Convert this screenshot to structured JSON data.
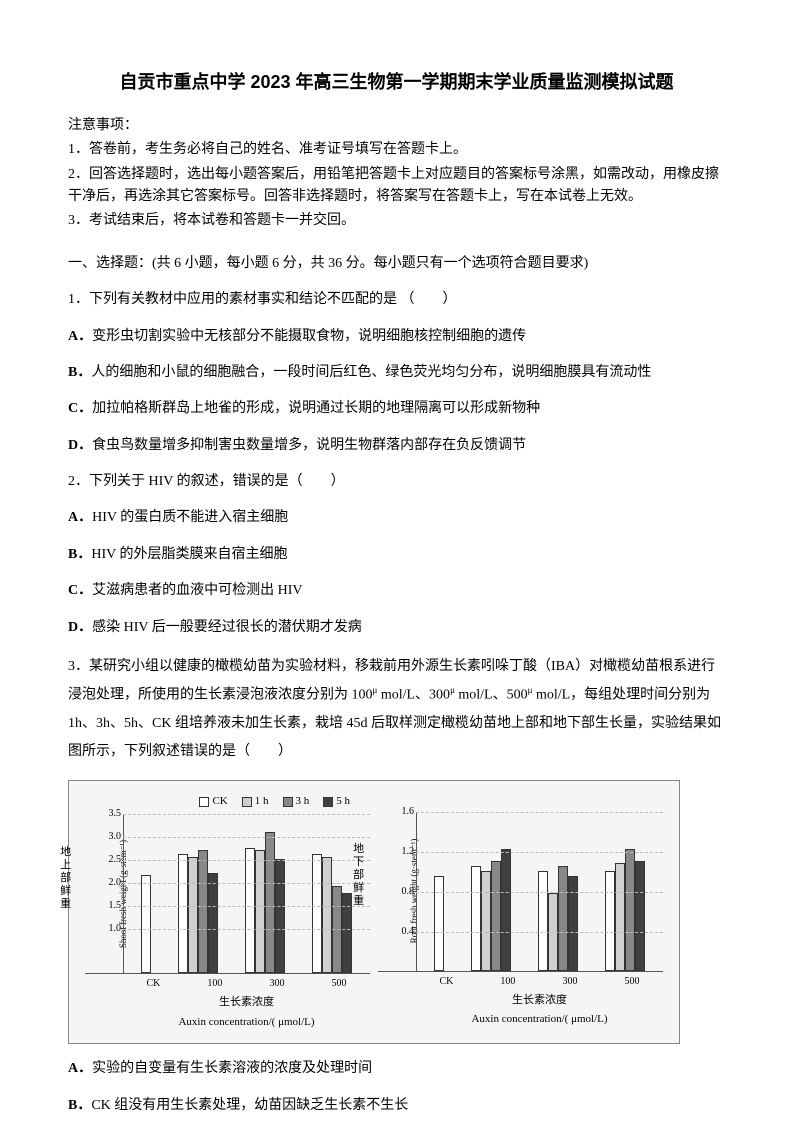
{
  "title": "自贡市重点中学 2023 年高三生物第一学期期末学业质量监测模拟试题",
  "notice": {
    "header": "注意事项：",
    "lines": [
      "1．答卷前，考生务必将自己的姓名、准考证号填写在答题卡上。",
      "2．回答选择题时，选出每小题答案后，用铅笔把答题卡上对应题目的答案标号涂黑，如需改动，用橡皮擦干净后，再选涂其它答案标号。回答非选择题时，将答案写在答题卡上，写在本试卷上无效。",
      "3．考试结束后，将本试卷和答题卡一并交回。"
    ]
  },
  "section1": {
    "header": "一、选择题：(共 6 小题，每小题 6 分，共 36 分。每小题只有一个选项符合题目要求)"
  },
  "q1": {
    "stem": "1．下列有关教材中应用的素材事实和结论不匹配的是 （　　）",
    "optA": "变形虫切割实验中无核部分不能摄取食物，说明细胞核控制细胞的遗传",
    "optB": "人的细胞和小鼠的细胞融合，一段时间后红色、绿色荧光均匀分布，说明细胞膜具有流动性",
    "optC": "加拉帕格斯群岛上地雀的形成，说明通过长期的地理隔离可以形成新物种",
    "optD": "食虫鸟数量增多抑制害虫数量增多，说明生物群落内部存在负反馈调节"
  },
  "q2": {
    "stem": "2．下列关于 HIV 的叙述，错误的是（　　）",
    "optA": "HIV 的蛋白质不能进入宿主细胞",
    "optB": "HIV 的外层脂类膜来自宿主细胞",
    "optC": "艾滋病患者的血液中可检测出 HIV",
    "optD": "感染 HIV 后一般要经过很长的潜伏期才发病"
  },
  "q3": {
    "stem_part1": "3．某研究小组以健康的橄榄幼苗为实验材料，移栽前用外源生长素吲哚丁酸（IBA）对橄榄幼苗根系进行浸泡处理，所使用的生长素浸泡液浓度分别为 100",
    "unit": "μ",
    "stem_part2": " mol/L、300",
    "stem_part3": " mol/L、500",
    "stem_part4": " mol/L，每组处理时间分别为 1h、3h、5h、CK 组培养液未加生长素，栽培 45d 后取样测定橄榄幼苗地上部和地下部生长量，实验结果如图所示，下列叙述错误的是（　　）",
    "optA": "实验的自变量有生长素溶液的浓度及处理时间",
    "optB": "CK 组没有用生长素处理，幼苗因缺乏生长素不生长"
  },
  "legend": {
    "items": [
      "CK",
      "1 h",
      "3 h",
      "5 h"
    ],
    "colors": [
      "#ffffff",
      "#d0d0d0",
      "#888888",
      "#404040"
    ]
  },
  "chart1": {
    "y_title_cn": "地上部鲜重",
    "y_title_en": "Shoot fresh weight (g·stem⁻¹)",
    "ymax": 3.5,
    "yticks": [
      "3.5",
      "3.0",
      "2.5",
      "2.0",
      "1.5",
      "1.0"
    ],
    "ytick_vals": [
      3.5,
      3.0,
      2.5,
      2.0,
      1.5,
      1.0
    ],
    "x_labels": [
      "CK",
      "100",
      "300",
      "500"
    ],
    "x_title_cn": "生长素浓度",
    "x_title_en": "Auxin concentration/( μmol/L)",
    "groups": [
      {
        "vals": [
          2.15
        ],
        "colors": [
          "#ffffff"
        ]
      },
      {
        "vals": [
          2.6,
          2.55,
          2.7,
          2.2
        ],
        "colors": [
          "#ffffff",
          "#d0d0d0",
          "#888888",
          "#404040"
        ]
      },
      {
        "vals": [
          2.75,
          2.7,
          3.1,
          2.5
        ],
        "colors": [
          "#ffffff",
          "#d0d0d0",
          "#888888",
          "#404040"
        ]
      },
      {
        "vals": [
          2.6,
          2.55,
          1.9,
          1.75
        ],
        "colors": [
          "#ffffff",
          "#d0d0d0",
          "#888888",
          "#404040"
        ]
      }
    ]
  },
  "chart2": {
    "y_title_cn": "地下部鲜重",
    "y_title_en": "Root fresh weight (g·stem⁻¹)",
    "ymax": 1.6,
    "yticks": [
      "1.6",
      "1.2",
      "0.8",
      "0.4"
    ],
    "ytick_vals": [
      1.6,
      1.2,
      0.8,
      0.4
    ],
    "x_labels": [
      "CK",
      "100",
      "300",
      "500"
    ],
    "x_title_cn": "生长素浓度",
    "x_title_en": "Auxin concentration/( μmol/L)",
    "groups": [
      {
        "vals": [
          0.95
        ],
        "colors": [
          "#ffffff"
        ]
      },
      {
        "vals": [
          1.05,
          1.0,
          1.1,
          1.22
        ],
        "colors": [
          "#ffffff",
          "#d0d0d0",
          "#888888",
          "#404040"
        ]
      },
      {
        "vals": [
          1.0,
          0.78,
          1.05,
          0.95
        ],
        "colors": [
          "#ffffff",
          "#d0d0d0",
          "#888888",
          "#404040"
        ]
      },
      {
        "vals": [
          1.0,
          1.08,
          1.22,
          1.1
        ],
        "colors": [
          "#ffffff",
          "#d0d0d0",
          "#888888",
          "#404040"
        ]
      }
    ]
  }
}
